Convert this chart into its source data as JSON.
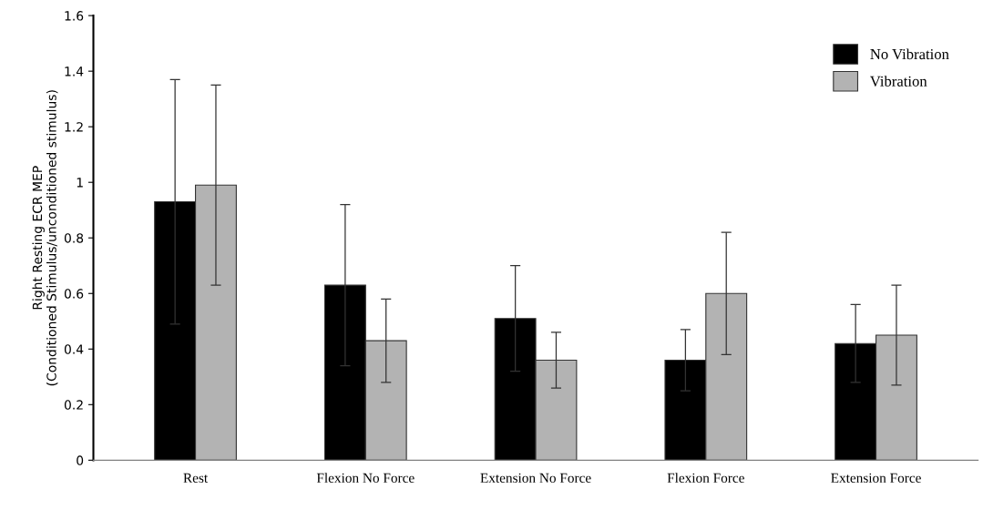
{
  "chart_data": {
    "type": "bar",
    "ylabel": "Right Resting ECR MEP\n(Conditioned Stimulus/unconditioned stimulus)",
    "categories": [
      "Rest",
      "Flexion No Force",
      "Extension No Force",
      "Flexion Force",
      "Extension Force"
    ],
    "series": [
      {
        "name": "No Vibration",
        "color": "#000000",
        "values": [
          0.93,
          0.63,
          0.51,
          0.36,
          0.42
        ],
        "errors": [
          0.44,
          0.29,
          0.19,
          0.11,
          0.14
        ]
      },
      {
        "name": "Vibration",
        "color": "#b3b3b3",
        "values": [
          0.99,
          0.43,
          0.36,
          0.6,
          0.45
        ],
        "errors": [
          0.36,
          0.15,
          0.1,
          0.22,
          0.18
        ]
      }
    ],
    "ylim": [
      0,
      1.6
    ],
    "yticks": [
      0,
      0.2,
      0.4,
      0.6,
      0.8,
      1,
      1.2,
      1.4,
      1.6
    ],
    "grid": false,
    "legend": "top right"
  }
}
